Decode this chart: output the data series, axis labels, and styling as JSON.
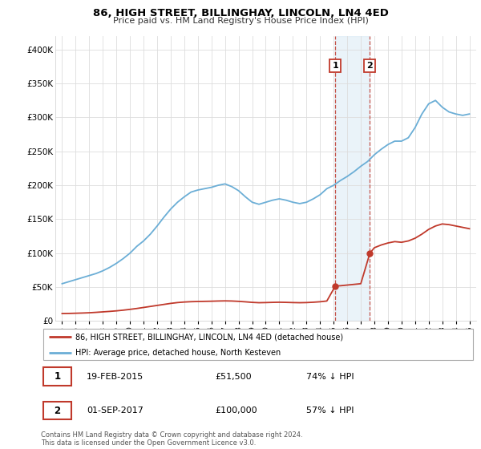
{
  "title": "86, HIGH STREET, BILLINGHAY, LINCOLN, LN4 4ED",
  "subtitle": "Price paid vs. HM Land Registry's House Price Index (HPI)",
  "legend_line1": "86, HIGH STREET, BILLINGHAY, LINCOLN, LN4 4ED (detached house)",
  "legend_line2": "HPI: Average price, detached house, North Kesteven",
  "annotation1_label": "1",
  "annotation1_date": "19-FEB-2015",
  "annotation1_price": "£51,500",
  "annotation1_pct": "74% ↓ HPI",
  "annotation2_label": "2",
  "annotation2_date": "01-SEP-2017",
  "annotation2_price": "£100,000",
  "annotation2_pct": "57% ↓ HPI",
  "footer": "Contains HM Land Registry data © Crown copyright and database right 2024.\nThis data is licensed under the Open Government Licence v3.0.",
  "hpi_color": "#6baed6",
  "price_color": "#c0392b",
  "annotation_box_color": "#c0392b",
  "shaded_region_color": "#d6e8f5",
  "ylim": [
    0,
    420000
  ],
  "yticks": [
    0,
    50000,
    100000,
    150000,
    200000,
    250000,
    300000,
    350000,
    400000
  ],
  "ytick_labels": [
    "£0",
    "£50K",
    "£100K",
    "£150K",
    "£200K",
    "£250K",
    "£300K",
    "£350K",
    "£400K"
  ],
  "hpi_years": [
    1995.0,
    1995.5,
    1996.0,
    1996.5,
    1997.0,
    1997.5,
    1998.0,
    1998.5,
    1999.0,
    1999.5,
    2000.0,
    2000.5,
    2001.0,
    2001.5,
    2002.0,
    2002.5,
    2003.0,
    2003.5,
    2004.0,
    2004.5,
    2005.0,
    2005.5,
    2006.0,
    2006.5,
    2007.0,
    2007.5,
    2008.0,
    2008.5,
    2009.0,
    2009.5,
    2010.0,
    2010.5,
    2011.0,
    2011.5,
    2012.0,
    2012.5,
    2013.0,
    2013.5,
    2014.0,
    2014.5,
    2015.0,
    2015.5,
    2016.0,
    2016.5,
    2017.0,
    2017.5,
    2018.0,
    2018.5,
    2019.0,
    2019.5,
    2020.0,
    2020.5,
    2021.0,
    2021.5,
    2022.0,
    2022.5,
    2023.0,
    2023.5,
    2024.0,
    2024.5,
    2025.0
  ],
  "hpi_values": [
    55000,
    58000,
    61000,
    64000,
    67000,
    70000,
    74000,
    79000,
    85000,
    92000,
    100000,
    110000,
    118000,
    128000,
    140000,
    153000,
    165000,
    175000,
    183000,
    190000,
    193000,
    195000,
    197000,
    200000,
    202000,
    198000,
    192000,
    183000,
    175000,
    172000,
    175000,
    178000,
    180000,
    178000,
    175000,
    173000,
    175000,
    180000,
    186000,
    195000,
    200000,
    207000,
    213000,
    220000,
    228000,
    235000,
    245000,
    253000,
    260000,
    265000,
    265000,
    270000,
    285000,
    305000,
    320000,
    325000,
    315000,
    308000,
    305000,
    303000,
    305000
  ],
  "price_years_before": [
    1995.0,
    1995.5,
    1996.0,
    1996.5,
    1997.0,
    1997.5,
    1998.0,
    1998.5,
    1999.0,
    1999.5,
    2000.0,
    2000.5,
    2001.0,
    2001.5,
    2002.0,
    2002.5,
    2003.0,
    2003.5,
    2004.0,
    2004.5,
    2005.0,
    2005.5,
    2006.0,
    2006.5,
    2007.0,
    2007.5,
    2008.0,
    2008.5,
    2009.0,
    2009.5,
    2010.0,
    2010.5,
    2011.0,
    2011.5,
    2012.0,
    2012.5,
    2013.0,
    2013.5,
    2014.0,
    2014.5,
    2015.12
  ],
  "price_values_before": [
    11000,
    11200,
    11500,
    11800,
    12200,
    12800,
    13500,
    14200,
    15000,
    16000,
    17200,
    18500,
    20000,
    21500,
    23000,
    24500,
    26000,
    27200,
    28000,
    28500,
    28800,
    29000,
    29200,
    29500,
    29700,
    29500,
    29000,
    28300,
    27500,
    27000,
    27200,
    27500,
    27700,
    27500,
    27200,
    27000,
    27200,
    27700,
    28400,
    29500,
    51500
  ],
  "price_years_after": [
    2015.12,
    2015.5,
    2016.0,
    2016.5,
    2017.0,
    2017.67,
    2018.0,
    2018.5,
    2019.0,
    2019.5,
    2020.0,
    2020.5,
    2021.0,
    2021.5,
    2022.0,
    2022.5,
    2023.0,
    2023.5,
    2024.0,
    2024.5,
    2025.0
  ],
  "price_values_after": [
    51500,
    52000,
    53000,
    54000,
    55000,
    100000,
    108000,
    112000,
    115000,
    117000,
    116000,
    118000,
    122000,
    128000,
    135000,
    140000,
    143000,
    142000,
    140000,
    138000,
    136000
  ],
  "sale1_x": 2015.12,
  "sale1_y": 51500,
  "sale2_x": 2017.67,
  "sale2_y": 100000,
  "shade_x1": 2015.12,
  "shade_x2": 2017.67,
  "xtick_years": [
    1995,
    1996,
    1997,
    1998,
    1999,
    2000,
    2001,
    2002,
    2003,
    2004,
    2005,
    2006,
    2007,
    2008,
    2009,
    2010,
    2011,
    2012,
    2013,
    2014,
    2015,
    2016,
    2017,
    2018,
    2019,
    2020,
    2021,
    2022,
    2023,
    2024,
    2025
  ],
  "bg_color": "#ffffff",
  "grid_color": "#dddddd",
  "spine_color": "#cccccc"
}
